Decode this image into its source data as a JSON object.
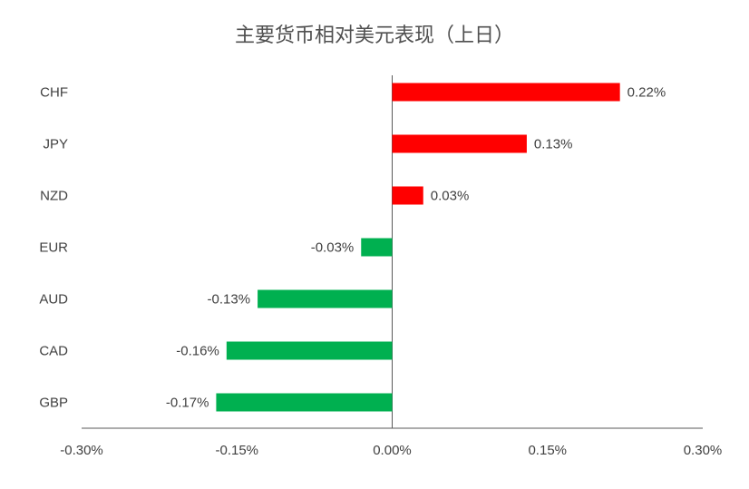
{
  "chart_data": {
    "type": "hbar",
    "title": "主要货币相对美元表现（上日）",
    "categories": [
      "CHF",
      "JPY",
      "NZD",
      "EUR",
      "AUD",
      "CAD",
      "GBP"
    ],
    "values": [
      0.22,
      0.13,
      0.03,
      -0.03,
      -0.13,
      -0.16,
      -0.17
    ],
    "value_labels": [
      "0.22%",
      "0.13%",
      "0.03%",
      "-0.03%",
      "-0.13%",
      "-0.16%",
      "-0.17%"
    ],
    "colors": [
      "#ff0000",
      "#ff0000",
      "#ff0000",
      "#00b050",
      "#00b050",
      "#00b050",
      "#00b050"
    ],
    "xlim": [
      -0.3,
      0.3
    ],
    "xticks": [
      {
        "value": -0.3,
        "label": "-0.30%"
      },
      {
        "value": -0.15,
        "label": "-0.15%"
      },
      {
        "value": 0,
        "label": "0.00%"
      },
      {
        "value": 0.15,
        "label": "0.15%"
      },
      {
        "value": 0.3,
        "label": "0.30%"
      }
    ]
  }
}
